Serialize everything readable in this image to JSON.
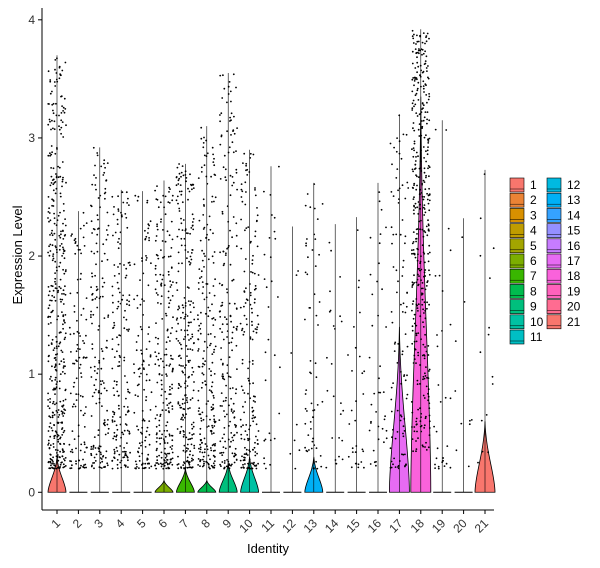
{
  "chart_data": {
    "type": "violin",
    "title": "",
    "xlabel": "Identity",
    "ylabel": "Expression Level",
    "ylim": [
      -0.15,
      4.1
    ],
    "yticks": [
      0,
      1,
      2,
      3,
      4
    ],
    "categories": [
      "1",
      "2",
      "3",
      "4",
      "5",
      "6",
      "7",
      "8",
      "9",
      "10",
      "11",
      "12",
      "13",
      "14",
      "15",
      "16",
      "17",
      "18",
      "19",
      "20",
      "21"
    ],
    "colors": [
      "#F8766D",
      "#E58700",
      "#C99800",
      "#A3A500",
      "#6BB100",
      "#00BA38",
      "#00BF7D",
      "#00C0AF",
      "#00BCD8",
      "#00B0F6",
      "#619CFF",
      "#B983FF",
      "#E76BF3",
      "#FD61D1",
      "#FF67A4",
      "#F8766D",
      "#E58700",
      "#C99800",
      "#A3A500",
      "#6BB100",
      "#00BA38"
    ],
    "legend_colors": [
      "#F8766D",
      "#EB8335",
      "#D89000",
      "#BF9C00",
      "#A3A500",
      "#7CAE00",
      "#39B600",
      "#00BB4E",
      "#00BF7D",
      "#00C1A3",
      "#00BFC4",
      "#00BAE0",
      "#00B0F6",
      "#35A2FF",
      "#9590FF",
      "#C77CFF",
      "#E76BF3",
      "#FA62DB",
      "#FF62BC",
      "#FF6C91",
      "#F8766D"
    ],
    "series": [
      {
        "name": "1",
        "max": 3.7,
        "violin_max": 0.3,
        "n_points": 420
      },
      {
        "name": "2",
        "max": 2.38,
        "violin_max": 0.02,
        "n_points": 110
      },
      {
        "name": "3",
        "max": 2.92,
        "violin_max": 0.02,
        "n_points": 170
      },
      {
        "name": "4",
        "max": 2.56,
        "violin_max": 0.02,
        "n_points": 170
      },
      {
        "name": "5",
        "max": 2.55,
        "violin_max": 0.02,
        "n_points": 120
      },
      {
        "name": "6",
        "max": 2.64,
        "violin_max": 0.1,
        "n_points": 220
      },
      {
        "name": "7",
        "max": 2.78,
        "violin_max": 0.2,
        "n_points": 250
      },
      {
        "name": "8",
        "max": 3.1,
        "violin_max": 0.1,
        "n_points": 220
      },
      {
        "name": "9",
        "max": 3.55,
        "violin_max": 0.25,
        "n_points": 200
      },
      {
        "name": "10",
        "max": 2.9,
        "violin_max": 0.3,
        "n_points": 180
      },
      {
        "name": "11",
        "max": 2.76,
        "violin_max": 0.02,
        "n_points": 30
      },
      {
        "name": "12",
        "max": 2.25,
        "violin_max": 0.02,
        "n_points": 8
      },
      {
        "name": "13",
        "max": 2.62,
        "violin_max": 0.3,
        "n_points": 60
      },
      {
        "name": "14",
        "max": 2.27,
        "violin_max": 0.02,
        "n_points": 25
      },
      {
        "name": "15",
        "max": 2.33,
        "violin_max": 0.02,
        "n_points": 30
      },
      {
        "name": "16",
        "max": 2.62,
        "violin_max": 0.02,
        "n_points": 40
      },
      {
        "name": "17",
        "max": 3.2,
        "violin_max": 1.4,
        "n_points": 100
      },
      {
        "name": "18",
        "max": 3.92,
        "violin_max": 3.35,
        "n_points": 400
      },
      {
        "name": "19",
        "max": 3.15,
        "violin_max": 0.02,
        "n_points": 30
      },
      {
        "name": "20",
        "max": 2.32,
        "violin_max": 0.02,
        "n_points": 10
      },
      {
        "name": "21",
        "max": 2.73,
        "violin_max": 0.6,
        "n_points": 15
      }
    ],
    "legend_position": "right",
    "grid": false
  }
}
